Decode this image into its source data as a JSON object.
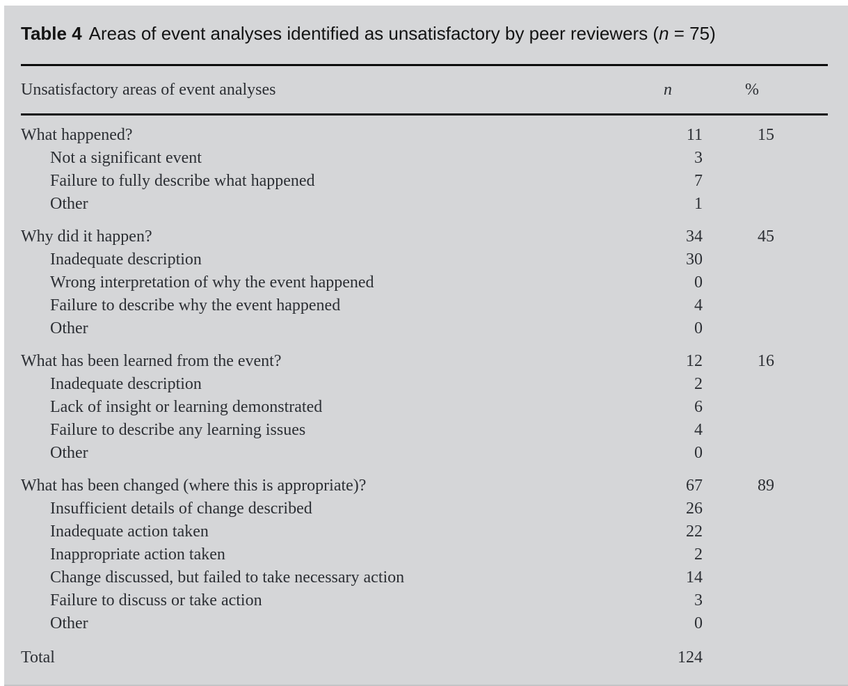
{
  "title": {
    "label": "Table 4",
    "text": "Areas of event analyses identified as unsatisfactory by peer reviewers (",
    "n_symbol": "n",
    "suffix": " = 75)"
  },
  "columns": {
    "area": "Unsatisfactory areas of event analyses",
    "n": "n",
    "pct": "%"
  },
  "sections": [
    {
      "header": {
        "label": "What happened?",
        "n": "11",
        "pct": "15"
      },
      "items": [
        {
          "label": "Not a significant event",
          "n": "3"
        },
        {
          "label": "Failure to fully describe what happened",
          "n": "7"
        },
        {
          "label": "Other",
          "n": "1"
        }
      ]
    },
    {
      "header": {
        "label": "Why did it happen?",
        "n": "34",
        "pct": "45"
      },
      "items": [
        {
          "label": "Inadequate description",
          "n": "30"
        },
        {
          "label": "Wrong interpretation of why the event happened",
          "n": "0"
        },
        {
          "label": "Failure to describe why the event happened",
          "n": "4"
        },
        {
          "label": "Other",
          "n": "0"
        }
      ]
    },
    {
      "header": {
        "label": "What has been learned from the event?",
        "n": "12",
        "pct": "16"
      },
      "items": [
        {
          "label": "Inadequate description",
          "n": "2"
        },
        {
          "label": "Lack of insight or learning demonstrated",
          "n": "6"
        },
        {
          "label": "Failure to describe any learning issues",
          "n": "4"
        },
        {
          "label": "Other",
          "n": "0"
        }
      ]
    },
    {
      "header": {
        "label": "What has been changed (where this is appropriate)?",
        "n": "67",
        "pct": "89"
      },
      "items": [
        {
          "label": "Insufficient details of change described",
          "n": "26"
        },
        {
          "label": "Inadequate action taken",
          "n": "22"
        },
        {
          "label": "Inappropriate action taken",
          "n": "2"
        },
        {
          "label": "Change discussed, but failed to take necessary action",
          "n": "14"
        },
        {
          "label": "Failure to discuss or take action",
          "n": "3"
        },
        {
          "label": "Other",
          "n": "0"
        }
      ]
    }
  ],
  "total": {
    "label": "Total",
    "n": "124"
  },
  "colors": {
    "panel_background": "#d5d6d8",
    "rule": "#0c0c0c",
    "body_text": "#2c2f34",
    "title_text": "#141414"
  }
}
